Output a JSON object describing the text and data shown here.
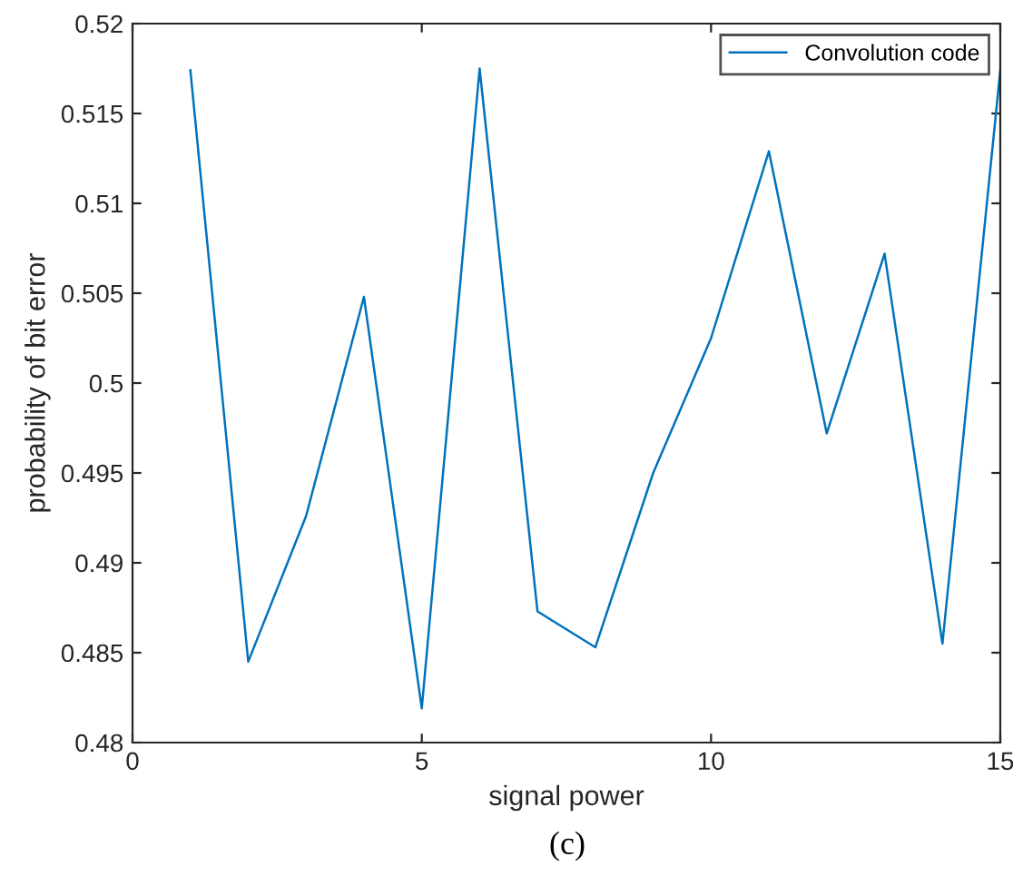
{
  "chart_data": {
    "type": "line",
    "xlabel": "signal power",
    "ylabel": "probability of bit error",
    "x": [
      1,
      2,
      3,
      4,
      5,
      6,
      7,
      8,
      9,
      10,
      11,
      12,
      13,
      14,
      15
    ],
    "series": [
      {
        "name": "Convolution code",
        "color": "#0072bd",
        "values": [
          0.5174,
          0.4845,
          0.4926,
          0.5048,
          0.4819,
          0.5175,
          0.4873,
          0.4853,
          0.495,
          0.5025,
          0.5129,
          0.4972,
          0.5072,
          0.4855,
          0.5174
        ]
      }
    ],
    "xlim": [
      0,
      15
    ],
    "xticks": [
      0,
      5,
      10,
      15
    ],
    "ylim": [
      0.48,
      0.52
    ],
    "yticks": [
      0.48,
      0.485,
      0.49,
      0.495,
      0.5,
      0.505,
      0.51,
      0.515,
      0.52
    ],
    "grid": false,
    "legend": "top right",
    "marker": "none",
    "line_style": "solid",
    "annotations": [
      "(c)"
    ]
  }
}
